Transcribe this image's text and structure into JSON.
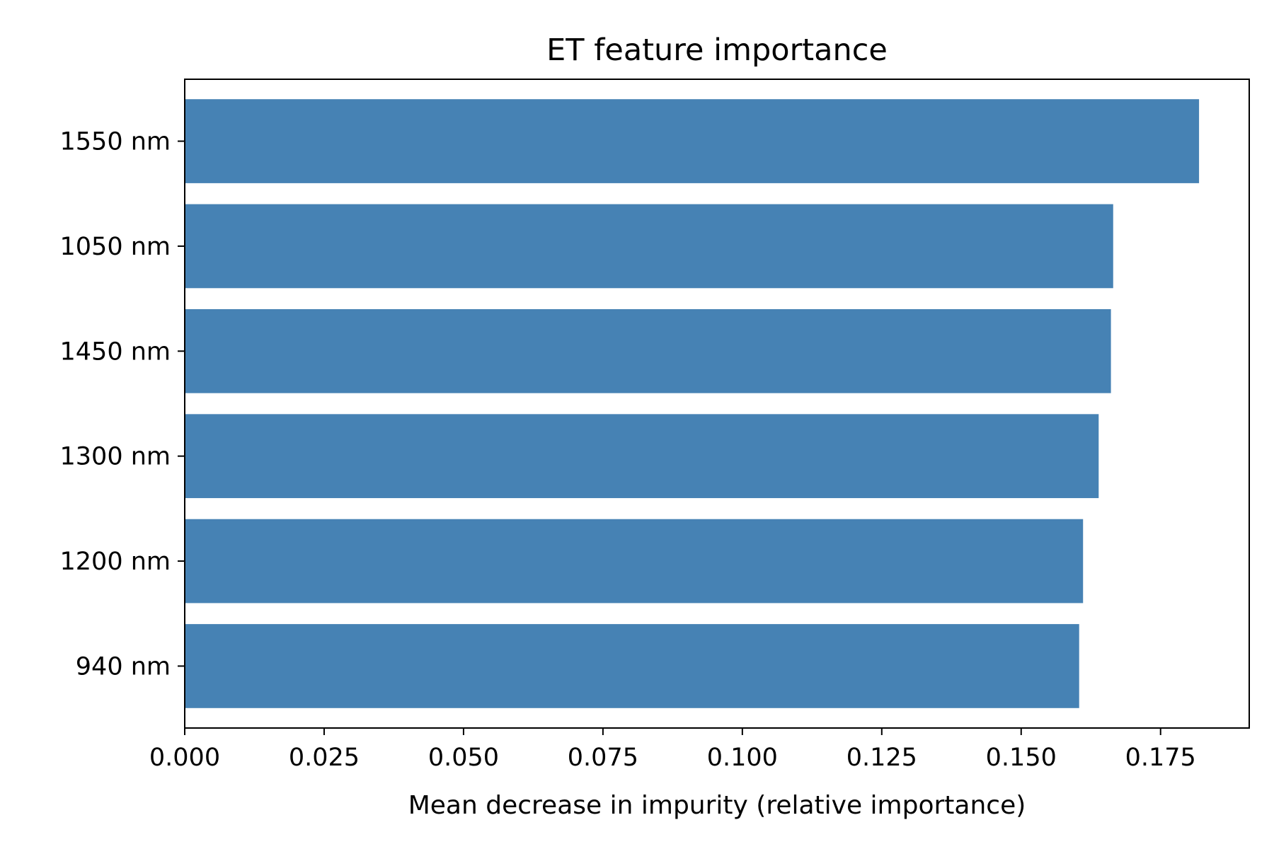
{
  "chart_data": {
    "type": "bar",
    "orientation": "horizontal",
    "title": "ET feature importance",
    "xlabel": "Mean decrease in impurity (relative importance)",
    "ylabel": "",
    "categories": [
      "940 nm",
      "1200 nm",
      "1300 nm",
      "1450 nm",
      "1050 nm",
      "1550 nm"
    ],
    "values": [
      0.1604,
      0.1611,
      0.1639,
      0.1661,
      0.1665,
      0.1819
    ],
    "xlim": [
      0,
      0.1909
    ],
    "xticks": [
      0.0,
      0.025,
      0.05,
      0.075,
      0.1,
      0.125,
      0.15,
      0.175
    ],
    "xtick_labels": [
      "0.000",
      "0.025",
      "0.050",
      "0.075",
      "0.100",
      "0.125",
      "0.150",
      "0.175"
    ],
    "bar_color": "#4682b4",
    "grid": false,
    "legend": false
  }
}
